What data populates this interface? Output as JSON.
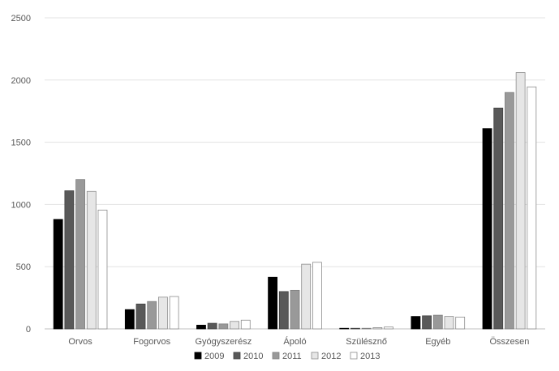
{
  "chart_data": {
    "type": "bar",
    "title": "",
    "xlabel": "",
    "ylabel": "",
    "ylim": [
      0,
      2500
    ],
    "yticks": [
      0,
      500,
      1000,
      1500,
      2000,
      2500
    ],
    "grid": true,
    "legend_position": "bottom",
    "categories": [
      "Orvos",
      "Fogorvos",
      "Gyógyszerész",
      "Ápoló",
      "Szülésznő",
      "Egyéb",
      "Összesen"
    ],
    "series": [
      {
        "name": "2009",
        "color": "#000000",
        "stroke": "#000000",
        "values": [
          880,
          155,
          30,
          415,
          5,
          100,
          1610
        ]
      },
      {
        "name": "2010",
        "color": "#595959",
        "stroke": "#404040",
        "values": [
          1110,
          200,
          45,
          300,
          5,
          105,
          1775
        ]
      },
      {
        "name": "2011",
        "color": "#999999",
        "stroke": "#7f7f7f",
        "values": [
          1200,
          220,
          40,
          310,
          5,
          110,
          1900
        ]
      },
      {
        "name": "2012",
        "color": "#e6e6e6",
        "stroke": "#8c8c8c",
        "values": [
          1105,
          255,
          60,
          520,
          10,
          100,
          2060
        ]
      },
      {
        "name": "2013",
        "color": "#ffffff",
        "stroke": "#8c8c8c",
        "values": [
          955,
          260,
          70,
          535,
          15,
          95,
          1945
        ]
      }
    ]
  }
}
